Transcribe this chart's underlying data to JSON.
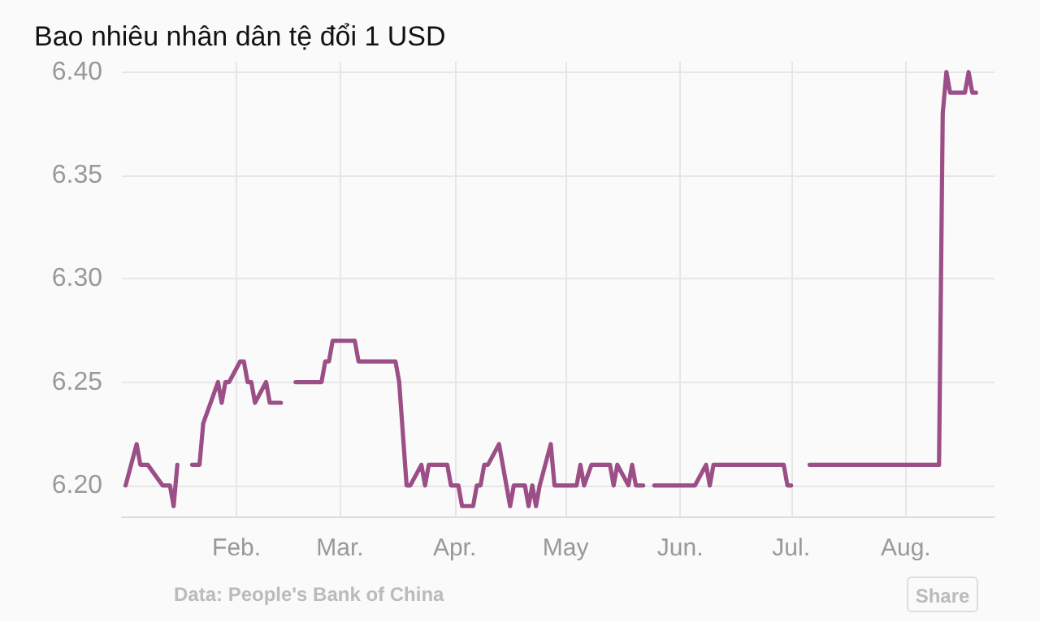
{
  "chart_data": {
    "type": "line",
    "title": "Bao nhiêu nhân dân tệ đổi 1 USD",
    "x": [
      "--01-02",
      "--01-05",
      "--01-06",
      "--01-08",
      "--01-12",
      "--01-14",
      "--01-15",
      "--01-16",
      "--01-19",
      "--01-20",
      "--01-22",
      "--01-23",
      "--01-27",
      "--01-28",
      "--01-29",
      "--01-30",
      "--02-02",
      "--02-03",
      "--02-04",
      "--02-05",
      "--02-06",
      "--02-09",
      "--02-10",
      "--02-13",
      "--02-16",
      "--02-17",
      "--02-24",
      "--02-25",
      "--02-26",
      "--02-27",
      "--03-05",
      "--03-06",
      "--03-16",
      "--03-17",
      "--03-19",
      "--03-20",
      "--03-23",
      "--03-24",
      "--03-25",
      "--03-30",
      "--03-31",
      "--04-02",
      "--04-03",
      "--04-06",
      "--04-07",
      "--04-08",
      "--04-09",
      "--04-10",
      "--04-13",
      "--04-16",
      "--04-17",
      "--04-20",
      "--04-21",
      "--04-22",
      "--04-23",
      "--04-24",
      "--04-27",
      "--04-28",
      "--05-04",
      "--05-05",
      "--05-06",
      "--05-08",
      "--05-13",
      "--05-14",
      "--05-15",
      "--05-18",
      "--05-19",
      "--05-20",
      "--05-22",
      "--05-23",
      "--05-25",
      "--06-05",
      "--06-08",
      "--06-09",
      "--06-10",
      "--06-26",
      "--06-29",
      "--06-30",
      "--07-01",
      "--07-02",
      "--07-06",
      "--08-10",
      "--08-11",
      "--08-12",
      "--08-13",
      "--08-17",
      "--08-18",
      "--08-19",
      "--08-20"
    ],
    "series": [
      {
        "color": "#9b4f86",
        "values": [
          6.2,
          6.22,
          6.21,
          6.21,
          6.2,
          6.2,
          6.19,
          6.21,
          null,
          6.21,
          6.21,
          6.23,
          6.25,
          6.24,
          6.25,
          6.25,
          6.26,
          6.26,
          6.25,
          6.25,
          6.24,
          6.25,
          6.24,
          6.24,
          null,
          6.25,
          6.25,
          6.26,
          6.26,
          6.27,
          6.27,
          6.26,
          6.26,
          6.25,
          6.2,
          6.2,
          6.21,
          6.2,
          6.21,
          6.21,
          6.2,
          6.2,
          6.19,
          6.19,
          6.2,
          6.2,
          6.21,
          6.21,
          6.22,
          6.19,
          6.2,
          6.2,
          6.19,
          6.2,
          6.19,
          6.2,
          6.22,
          6.2,
          6.2,
          6.21,
          6.2,
          6.21,
          6.21,
          6.2,
          6.21,
          6.2,
          6.21,
          6.2,
          6.2,
          null,
          6.2,
          6.2,
          6.21,
          6.2,
          6.21,
          6.21,
          6.21,
          6.2,
          6.2,
          null,
          6.21,
          6.21,
          6.38,
          6.4,
          6.39,
          6.39,
          6.4,
          6.39,
          6.39
        ]
      }
    ],
    "xlim": [
      "--01-01",
      "--08-25"
    ],
    "xticks": [
      {
        "value": "--02-01",
        "label": "Feb."
      },
      {
        "value": "--03-01",
        "label": "Mar."
      },
      {
        "value": "--04-01",
        "label": "Apr."
      },
      {
        "value": "--05-01",
        "label": "May"
      },
      {
        "value": "--06-01",
        "label": "Jun."
      },
      {
        "value": "--07-01",
        "label": "Jul."
      },
      {
        "value": "--08-01",
        "label": "Aug."
      }
    ],
    "ylim": [
      6.185,
      6.405
    ],
    "yticks": [
      {
        "value": 6.2,
        "label": "6.20"
      },
      {
        "value": 6.25,
        "label": "6.25"
      },
      {
        "value": 6.3,
        "label": "6.30"
      },
      {
        "value": 6.35,
        "label": "6.35"
      },
      {
        "value": 6.4,
        "label": "6.40"
      }
    ],
    "grid": true,
    "marker": "none",
    "line_style": "solid",
    "annotations": [
      "Data: People's Bank of China",
      "Share"
    ]
  }
}
